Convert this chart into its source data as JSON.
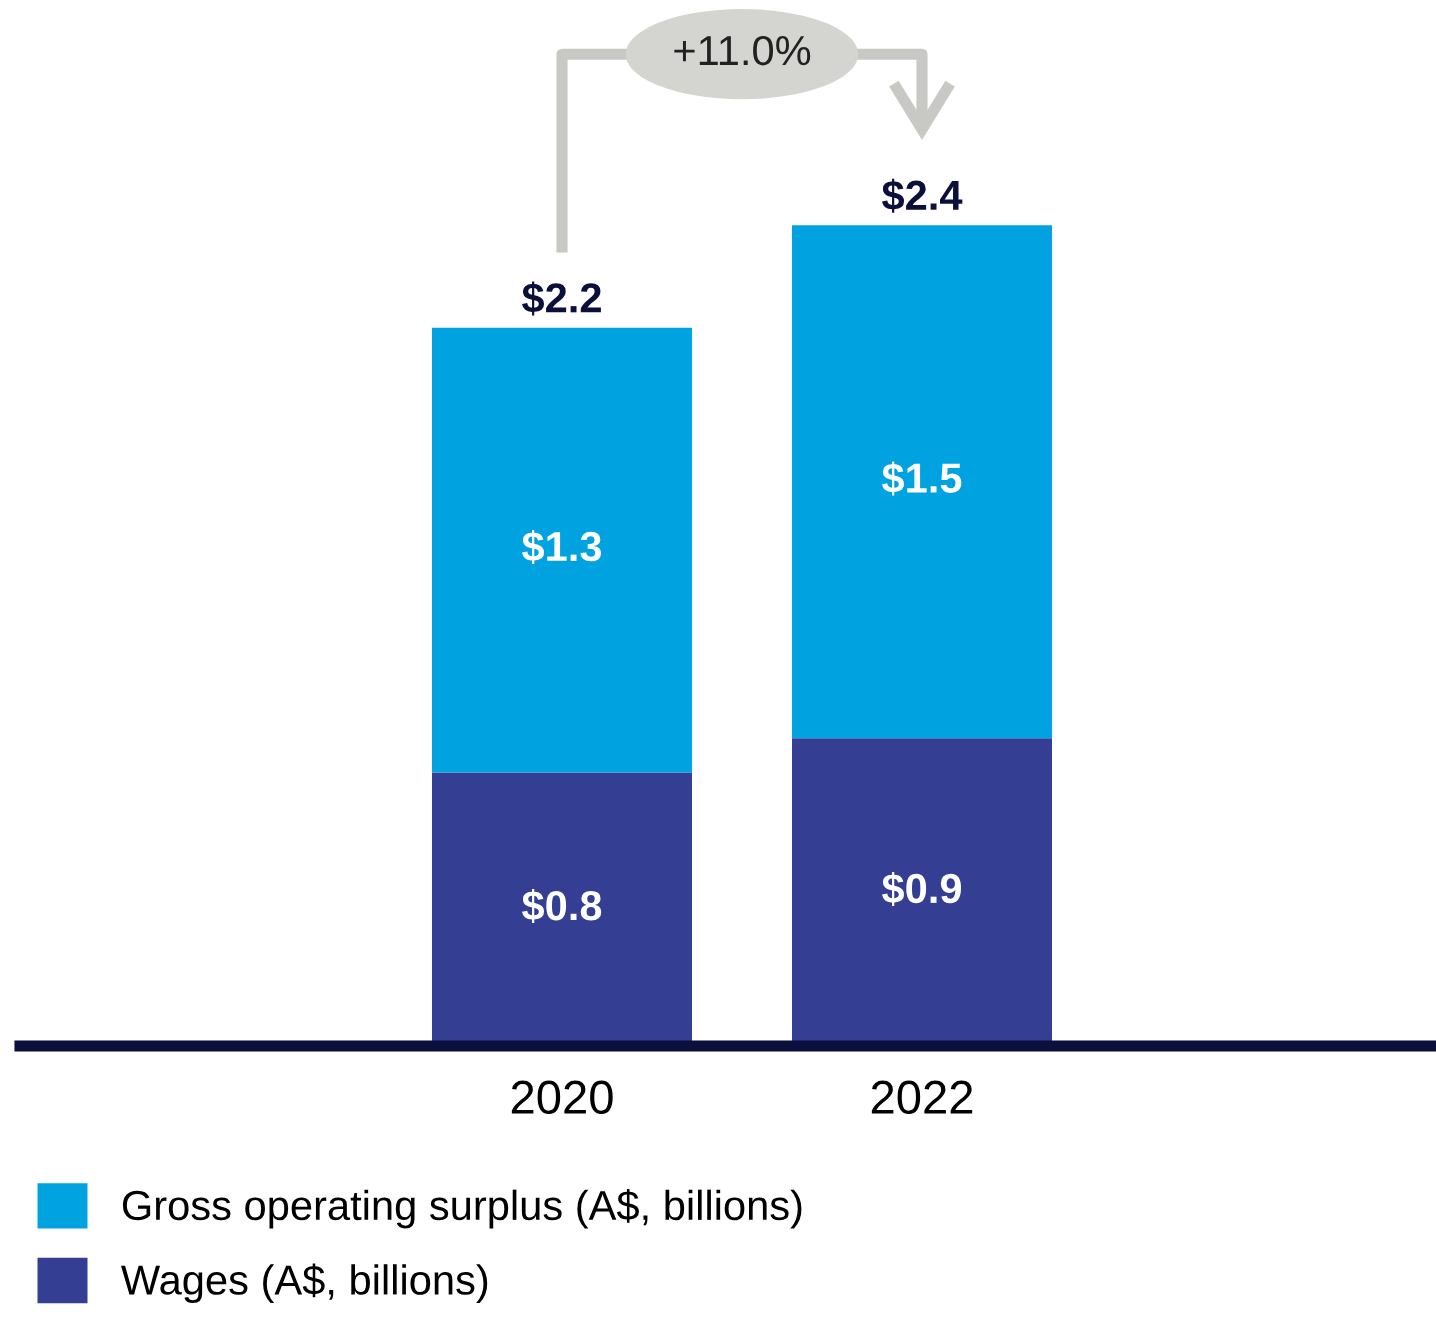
{
  "chart_data": {
    "type": "bar",
    "stacked": true,
    "categories": [
      "2020",
      "2022"
    ],
    "series": [
      {
        "name": "Wages (A$, billions)",
        "color": "#343e92",
        "values": [
          0.8,
          0.9
        ],
        "value_labels": [
          "$0.8",
          "$0.9"
        ]
      },
      {
        "name": "Gross operating surplus (A$, billions)",
        "color": "#00a3e0",
        "values": [
          1.3,
          1.5
        ],
        "value_labels": [
          "$1.3",
          "$1.5"
        ]
      }
    ],
    "totals": [
      "$2.2",
      "$2.4"
    ],
    "annotations": [
      "+11.0%"
    ],
    "legend": "bottom left",
    "grid": false
  }
}
